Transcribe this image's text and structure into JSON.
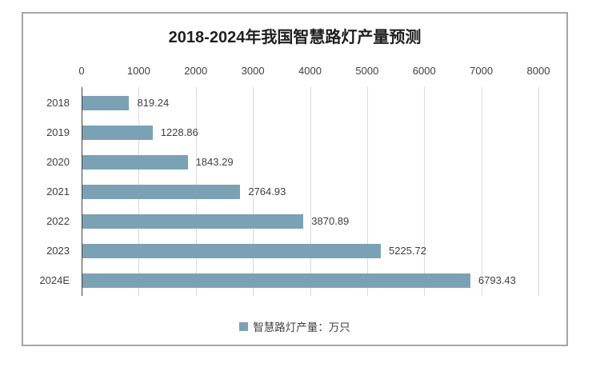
{
  "chart_data": {
    "type": "bar",
    "orientation": "horizontal",
    "title": "2018-2024年我国智慧路灯产量预测",
    "categories": [
      "2018",
      "2019",
      "2020",
      "2021",
      "2022",
      "2023",
      "2024E"
    ],
    "values": [
      819.24,
      1228.86,
      1843.29,
      2764.93,
      3870.89,
      5225.72,
      6793.43
    ],
    "value_labels": [
      "819.24",
      "1228.86",
      "1843.29",
      "2764.93",
      "3870.89",
      "5225.72",
      "6793.43"
    ],
    "x_ticks": [
      "0",
      "1000",
      "2000",
      "3000",
      "4000",
      "5000",
      "6000",
      "7000",
      "8000"
    ],
    "xlim": [
      0,
      8000
    ],
    "grid": true,
    "legend_position": "bottom",
    "legend_label": "智慧路灯产量：万只"
  },
  "style": {
    "bar_color": "#7aa2b4",
    "grid_color": "#d9d9d9",
    "axis_line_color": "#404040",
    "text_color": "#3f3f3f",
    "title_color": "#1f1f1f",
    "frame_border_color": "#a6a6a6"
  }
}
